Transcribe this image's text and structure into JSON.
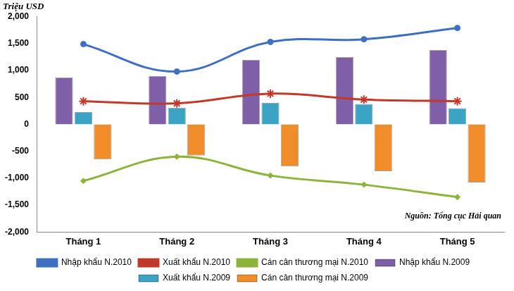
{
  "chart_data": {
    "type": "bar",
    "y_label": "Triệu USD",
    "source": "Nguồn: Tổng cục Hải quan",
    "categories": [
      "Tháng 1",
      "Tháng 2",
      "Tháng 3",
      "Tháng 4",
      "Tháng 5"
    ],
    "series": [
      {
        "name": "Nhập khẩu N.2009",
        "type": "bar",
        "color": "#7f5fa8",
        "values": [
          870,
          900,
          1200,
          1250,
          1380
        ]
      },
      {
        "name": "Xuất khẩu N.2009",
        "type": "bar",
        "color": "#3ba3c4",
        "values": [
          230,
          310,
          400,
          380,
          300
        ]
      },
      {
        "name": "Cán cân thương mại N.2009",
        "type": "bar",
        "color": "#f08c2a",
        "values": [
          -650,
          -580,
          -780,
          -870,
          -1080
        ]
      },
      {
        "name": "Nhập khẩu N.2010",
        "type": "line",
        "color": "#3e6fc1",
        "marker": "circle",
        "values": [
          1490,
          980,
          1530,
          1580,
          1790
        ]
      },
      {
        "name": "Xuất khẩu N.2010",
        "type": "line",
        "color": "#c0392b",
        "marker": "star",
        "values": [
          430,
          390,
          570,
          460,
          430
        ]
      },
      {
        "name": "Cán cân thương mại N.2010",
        "type": "line",
        "color": "#8db43a",
        "marker": "diamond",
        "values": [
          -1050,
          -600,
          -950,
          -1120,
          -1350
        ]
      }
    ],
    "ylim": [
      -2000,
      2000
    ],
    "yticks": [
      {
        "value": -2000,
        "label": "-2,000"
      },
      {
        "value": -1500,
        "label": "-1,500"
      },
      {
        "value": -1000,
        "label": "-1,000"
      },
      -500,
      0,
      500,
      {
        "value": 1000,
        "label": "1,000"
      },
      {
        "value": 1500,
        "label": "1,500"
      },
      {
        "value": 2000,
        "label": "2,000"
      }
    ],
    "grid": false,
    "legend": "bottom"
  }
}
